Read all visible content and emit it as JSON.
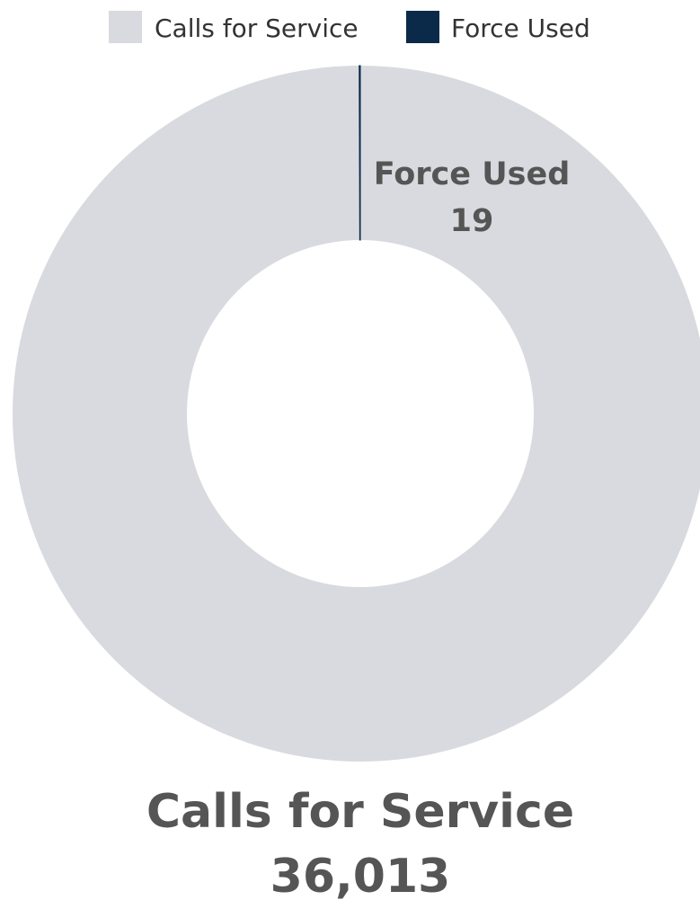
{
  "chart_data": {
    "type": "pie",
    "donut": true,
    "categories": [
      "Calls for Service",
      "Force Used"
    ],
    "values": [
      36013,
      19
    ],
    "colors": [
      "#d8dadf",
      "#0b2a4a"
    ],
    "legend": {
      "position": "top-center",
      "items": [
        {
          "label": "Calls for Service",
          "color": "#d8dadf"
        },
        {
          "label": "Force Used",
          "color": "#0b2a4a"
        }
      ]
    },
    "data_labels": [
      {
        "name": "Force Used",
        "value": "19"
      },
      {
        "name": "Calls for Service",
        "value": "36,013"
      }
    ]
  }
}
